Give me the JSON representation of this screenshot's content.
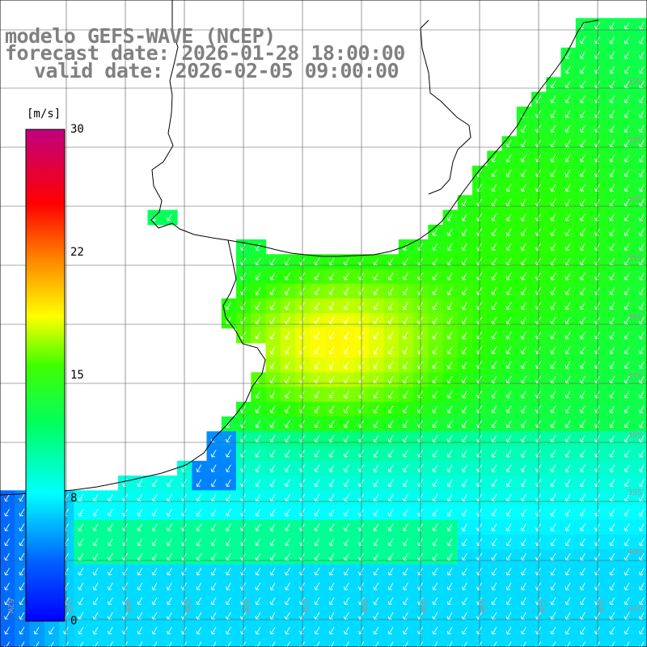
{
  "title": {
    "line1": "modelo GEFS-WAVE (NCEP)",
    "line2": "forecast date: 2026-01-28 18:00:00",
    "line3": "valid date: 2026-02-05 09:00:00"
  },
  "colorbar": {
    "unit": "[m/s]",
    "ticks": [
      "30",
      "22",
      "15",
      "8",
      "0"
    ],
    "tick_values": [
      30,
      22,
      15,
      8,
      0
    ],
    "min": 0,
    "max": 30,
    "colors": [
      "#0000ff",
      "#0080ff",
      "#00ffff",
      "#00ff40",
      "#80ff00",
      "#ffff00",
      "#ff8000",
      "#ff0000",
      "#c00080"
    ]
  },
  "grid": {
    "lat_labels": [
      "32S",
      "33S",
      "34S",
      "35S",
      "36S",
      "37S",
      "38S",
      "39S",
      "40S",
      "41S"
    ],
    "lon_labels": [
      "62W",
      "61W",
      "60W",
      "59W",
      "58W",
      "57W",
      "56W",
      "55W",
      "54W",
      "53W",
      "52W",
      "51W"
    ]
  },
  "field": {
    "variable": "wind speed",
    "direction": "from NE toward SW"
  }
}
